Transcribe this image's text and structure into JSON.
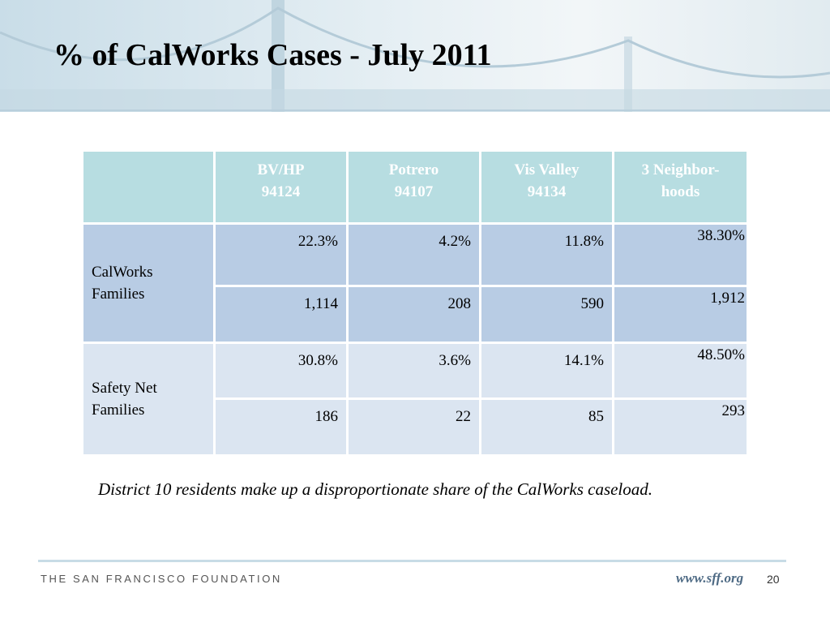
{
  "title": "% of CalWorks Cases - July 2011",
  "table": {
    "header": [
      [
        "BV/HP",
        "94124"
      ],
      [
        "Potrero",
        "94107"
      ],
      [
        "Vis Valley",
        "94134"
      ],
      [
        "3 Neighbor-",
        "hoods"
      ]
    ],
    "groups": [
      {
        "label": [
          "CalWorks",
          "Families"
        ],
        "rows": [
          [
            "22.3%",
            "4.2%",
            "11.8%",
            "38.30%"
          ],
          [
            "1,114",
            "208",
            "590",
            "1,912"
          ]
        ]
      },
      {
        "label": [
          "Safety Net",
          "Families"
        ],
        "rows": [
          [
            "30.8%",
            "3.6%",
            "14.1%",
            "48.50%"
          ],
          [
            "186",
            "22",
            "85",
            "293"
          ]
        ]
      }
    ]
  },
  "note": "District 10 residents make up a disproportionate share of the CalWorks caseload.",
  "footer": {
    "organization": "THE SAN FRANCISCO FOUNDATION",
    "url": "www.sff.org",
    "page": "20"
  }
}
